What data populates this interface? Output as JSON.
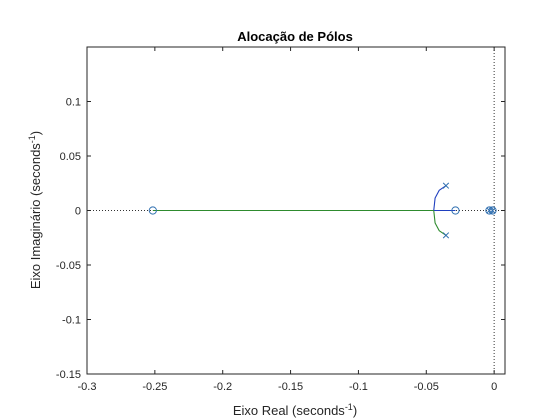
{
  "chart_data": {
    "type": "scatter",
    "title": "Alocação de Pólos",
    "xlabel": "Eixo Real (seconds",
    "ylabel": "Eixo Imaginário (seconds",
    "unit_exponent": "-1",
    "xlim": [
      -0.3,
      0.008
    ],
    "ylim": [
      -0.15,
      0.15
    ],
    "xticks": [
      -0.3,
      -0.25,
      -0.2,
      -0.15,
      -0.1,
      -0.05,
      0
    ],
    "xtick_labels": [
      "-0.3",
      "-0.25",
      "-0.2",
      "-0.15",
      "-0.1",
      "-0.05",
      "0"
    ],
    "yticks": [
      -0.15,
      -0.1,
      -0.05,
      0,
      0.05,
      0.1
    ],
    "ytick_labels": [
      "-0.15",
      "-0.1",
      "-0.05",
      "0",
      "0.05",
      "0.1"
    ],
    "grid": false,
    "poles": [
      {
        "re": -0.0355,
        "im": 0.0228
      },
      {
        "re": -0.0355,
        "im": -0.0228
      },
      {
        "re": -0.0035,
        "im": 0
      },
      {
        "re": -0.0012,
        "im": 0
      }
    ],
    "zeros": [
      {
        "re": -0.2515,
        "im": 0
      },
      {
        "re": -0.0285,
        "im": 0
      },
      {
        "re": -0.0035,
        "im": 0
      },
      {
        "re": -0.0012,
        "im": 0
      }
    ],
    "branches": [
      {
        "color": "#1f3fbf",
        "points": [
          [
            -0.0355,
            0.0228
          ],
          [
            -0.0405,
            0.0185
          ],
          [
            -0.0435,
            0.0115
          ],
          [
            -0.0445,
            0.0
          ]
        ]
      },
      {
        "color": "#2e8b2e",
        "points": [
          [
            -0.0355,
            -0.0228
          ],
          [
            -0.0405,
            -0.0185
          ],
          [
            -0.0435,
            -0.0115
          ],
          [
            -0.0445,
            0.0
          ]
        ]
      },
      {
        "color": "#1f3fbf",
        "points": [
          [
            -0.0445,
            0.0
          ],
          [
            -0.0285,
            0.0
          ]
        ]
      },
      {
        "color": "#2e8b2e",
        "points": [
          [
            -0.0445,
            0.0
          ],
          [
            -0.2515,
            0.0
          ]
        ]
      }
    ],
    "colors": {
      "marker": "#2f6fb0",
      "dotted_ref": "#333333",
      "axis": "#262626"
    }
  }
}
